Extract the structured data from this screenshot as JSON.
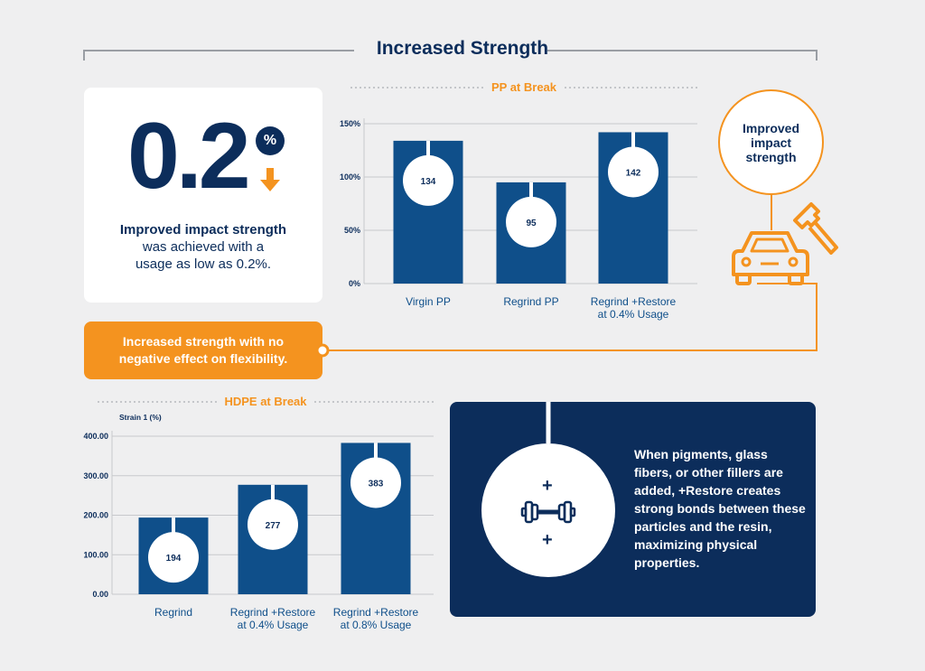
{
  "colors": {
    "navy": "#0c2d5b",
    "bar_blue": "#0f4f8a",
    "orange": "#f4931f",
    "background": "#efeff0",
    "grid": "#c7c9cc"
  },
  "page": {
    "title": "Increased Strength"
  },
  "stat_card": {
    "number": "0.2",
    "unit": "%",
    "arrow_icon": "arrow-down-icon",
    "highlight": "Improved impact strength",
    "text": "was achieved with a usage as low as 0.2%."
  },
  "callout": {
    "text": "Increased strength with no negative effect on flexibility."
  },
  "improved_badge": {
    "text": "Improved impact strength",
    "icons": [
      "car-icon",
      "hammer-icon"
    ]
  },
  "info_panel": {
    "text": "When pigments, glass fibers, or other fillers are added, +Restore creates strong bonds between these particles and the resin, maximizing physical properties.",
    "icon": "dumbbell-icon",
    "plus_symbol": "+"
  },
  "chart_data": [
    {
      "type": "bar",
      "title": "PP at Break",
      "categories": [
        "Virgin PP",
        "Regrind PP",
        "Regrind +Restore at 0.4% Usage"
      ],
      "values": [
        134,
        95,
        142
      ],
      "value_labels": [
        "134",
        "95",
        "142"
      ],
      "ylim": [
        0,
        150
      ],
      "yticks": [
        0,
        50,
        100,
        150
      ],
      "ytick_labels": [
        "0%",
        "50%",
        "100%",
        "150%"
      ],
      "ylabel": "",
      "grid": true
    },
    {
      "type": "bar",
      "title": "HDPE at Break",
      "categories": [
        "Regrind",
        "Regrind +Restore at 0.4% Usage",
        "Regrind +Restore at 0.8% Usage"
      ],
      "values": [
        194,
        277,
        383
      ],
      "value_labels": [
        "194",
        "277",
        "383"
      ],
      "ylim": [
        0,
        400
      ],
      "yticks": [
        0,
        100,
        200,
        300,
        400
      ],
      "ytick_labels": [
        "0.00",
        "100.00",
        "200.00",
        "300.00",
        "400.00"
      ],
      "ylabel": "Strain 1 (%)",
      "grid": true
    }
  ]
}
